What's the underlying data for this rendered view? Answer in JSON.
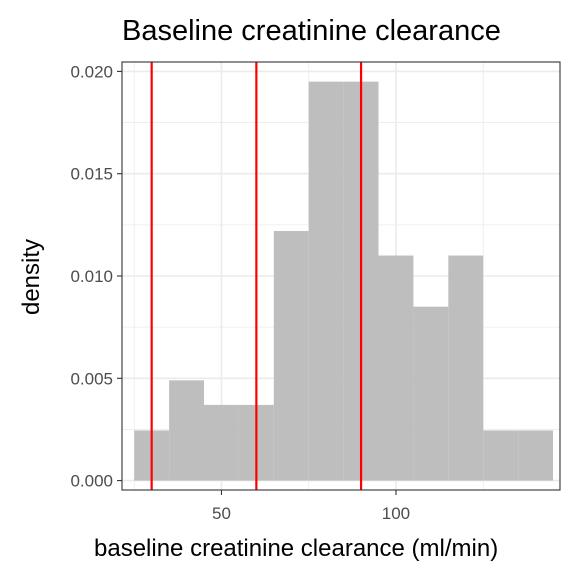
{
  "chart_data": {
    "type": "bar",
    "title": "Baseline creatinine clearance",
    "xlabel": "baseline creatinine clearance (ml/min)",
    "ylabel": "density",
    "xlim": [
      21.5,
      147
    ],
    "ylim": [
      -0.00046,
      0.02046
    ],
    "x_ticks": [
      50,
      100
    ],
    "y_ticks": [
      0.0,
      0.005,
      0.01,
      0.015,
      0.02
    ],
    "x_tick_labels": [
      "50",
      "100"
    ],
    "y_tick_labels": [
      "0.000",
      "0.005",
      "0.010",
      "0.015",
      "0.020"
    ],
    "bins": [
      {
        "x0": 25,
        "x1": 35,
        "density": 0.00245
      },
      {
        "x0": 35,
        "x1": 45,
        "density": 0.0049
      },
      {
        "x0": 45,
        "x1": 55,
        "density": 0.0037
      },
      {
        "x0": 55,
        "x1": 65,
        "density": 0.0037
      },
      {
        "x0": 65,
        "x1": 75,
        "density": 0.0122
      },
      {
        "x0": 75,
        "x1": 85,
        "density": 0.0195
      },
      {
        "x0": 85,
        "x1": 95,
        "density": 0.0195
      },
      {
        "x0": 95,
        "x1": 105,
        "density": 0.011
      },
      {
        "x0": 105,
        "x1": 115,
        "density": 0.0085
      },
      {
        "x0": 115,
        "x1": 125,
        "density": 0.011
      },
      {
        "x0": 125,
        "x1": 135,
        "density": 0.00245
      },
      {
        "x0": 135,
        "x1": 145,
        "density": 0.00245
      }
    ],
    "reference_lines": [
      30,
      60,
      90
    ],
    "grid": true,
    "colors": {
      "bar": "#bebebe",
      "reference_line": "#ff0000",
      "grid": "#ebebeb",
      "panel_border": "#333333"
    }
  }
}
